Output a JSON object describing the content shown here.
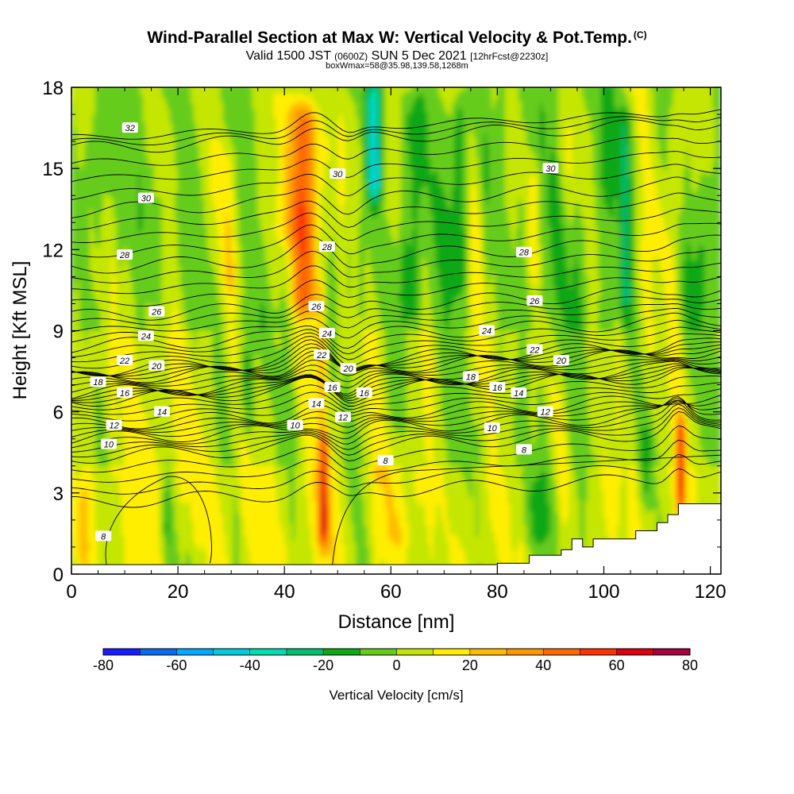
{
  "header": {
    "title": "Wind-Parallel Section at Max W: Vertical Velocity & Pot.Temp.",
    "copyright": "(C)",
    "valid_main": "Valid 1500 JST",
    "valid_utc": "(0600Z)",
    "valid_date": "SUN 5 Dec 2021",
    "forecast": "[12hrFcst@2230z]",
    "box_info": "boxWmax=58@35.98,139.58,1268m"
  },
  "chart_data": {
    "type": "heatmap",
    "xlabel": "Distance [nm]",
    "ylabel": "Height [Kft MSL]",
    "xlim": [
      0,
      122
    ],
    "ylim": [
      0,
      18
    ],
    "x_ticks": [
      0,
      20,
      40,
      60,
      80,
      100,
      120
    ],
    "y_ticks": [
      0,
      3,
      6,
      9,
      12,
      15,
      18
    ],
    "colorbar": {
      "title": "Vertical Velocity [cm/s]",
      "levels": [
        -80,
        -70,
        -60,
        -50,
        -40,
        -30,
        -20,
        -10,
        0,
        10,
        20,
        30,
        40,
        50,
        60,
        70,
        80
      ],
      "tick_labels": [
        "-80",
        "-60",
        "-40",
        "-20",
        "0",
        "20",
        "40",
        "60",
        "80"
      ],
      "colors": [
        "#1a1aff",
        "#0a6bf0",
        "#00aaff",
        "#00ccdd",
        "#00ddb0",
        "#00c070",
        "#10a818",
        "#66cc1a",
        "#c4e600",
        "#ffee00",
        "#ffbb00",
        "#ff9500",
        "#ff6a00",
        "#ff3300",
        "#dd0010",
        "#a00040",
        "#6a0080"
      ]
    },
    "velocity_features": [
      {
        "x": 44,
        "z_min": 9,
        "z_max": 18,
        "w": 45
      },
      {
        "x": 47.5,
        "z_min": 1.5,
        "z_max": 5,
        "w": 55
      },
      {
        "x": 114.5,
        "z_min": 3,
        "z_max": 5.5,
        "w": 50
      },
      {
        "x": 57,
        "z_min": 14,
        "z_max": 18,
        "w": -40
      },
      {
        "x": 65,
        "z_min": 9,
        "z_max": 18,
        "w": -20
      },
      {
        "x": 33,
        "z_min": 5.5,
        "z_max": 8,
        "w": -15
      },
      {
        "x": 88,
        "z_min": 1.5,
        "z_max": 3.5,
        "w": -12
      }
    ],
    "theta_contours": [
      {
        "label": "8",
        "level": 8
      },
      {
        "label": "10",
        "level": 10
      },
      {
        "label": "12",
        "level": 12
      },
      {
        "label": "14",
        "level": 14
      },
      {
        "label": "16",
        "level": 16
      },
      {
        "label": "18",
        "level": 18
      },
      {
        "label": "20",
        "level": 20
      },
      {
        "label": "22",
        "level": 22
      },
      {
        "label": "24",
        "level": 24
      },
      {
        "label": "26",
        "level": 26
      },
      {
        "label": "28",
        "level": 28
      },
      {
        "label": "30",
        "level": 30
      },
      {
        "label": "32",
        "level": 32
      }
    ],
    "terrain": [
      [
        80,
        0.4
      ],
      [
        86,
        0.4
      ],
      [
        86,
        0.7
      ],
      [
        92,
        0.7
      ],
      [
        92,
        0.9
      ],
      [
        94,
        0.9
      ],
      [
        94,
        1.3
      ],
      [
        96,
        1.3
      ],
      [
        96,
        1.0
      ],
      [
        98,
        1.0
      ],
      [
        98,
        1.3
      ],
      [
        106,
        1.3
      ],
      [
        106,
        1.6
      ],
      [
        110,
        1.6
      ],
      [
        110,
        1.9
      ],
      [
        112,
        1.9
      ],
      [
        112,
        2.2
      ],
      [
        114,
        2.2
      ],
      [
        114,
        2.6
      ],
      [
        122,
        2.6
      ]
    ]
  }
}
